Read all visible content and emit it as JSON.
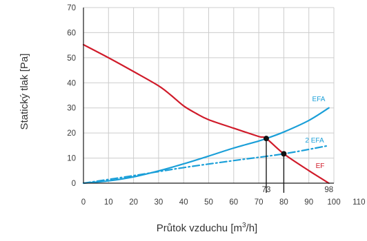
{
  "chart_data": {
    "type": "line",
    "xlabel": "Průtok vzduchu [m",
    "xlabel_sup": "3",
    "xlabel_tail": "/h]",
    "ylabel": "Statický tlak [Pa]",
    "xlim": [
      0,
      110
    ],
    "ylim": [
      0,
      70
    ],
    "xticks": [
      0,
      10,
      20,
      30,
      40,
      50,
      60,
      70,
      80,
      90,
      100,
      110
    ],
    "yticks": [
      0,
      10,
      20,
      30,
      40,
      50,
      60,
      70
    ],
    "grid": true,
    "series": [
      {
        "name": "EFA",
        "style": "solid",
        "color": "#1a9fd8",
        "x": [
          0,
          10,
          20,
          30,
          40,
          50,
          60,
          70,
          73,
          80,
          90,
          98
        ],
        "y": [
          0,
          0.9,
          2.5,
          4.9,
          7.7,
          10.8,
          14.0,
          16.8,
          17.8,
          20.4,
          25.0,
          30.0
        ]
      },
      {
        "name": "2 EFA",
        "style": "dash-dot",
        "color": "#1a9fd8",
        "x": [
          0,
          20,
          40,
          60,
          80,
          98
        ],
        "y": [
          0,
          3.0,
          6.2,
          9.0,
          11.7,
          15.0
        ]
      },
      {
        "name": "EF",
        "style": "solid",
        "color": "#d01b2a",
        "x": [
          0,
          10,
          20,
          30,
          35,
          40,
          45,
          50,
          60,
          70,
          73,
          80,
          90,
          98
        ],
        "y": [
          55.2,
          50.0,
          44.5,
          38.8,
          35.0,
          30.8,
          27.8,
          25.3,
          21.9,
          18.6,
          17.8,
          11.7,
          5.0,
          0
        ]
      }
    ],
    "points": [
      {
        "x": 73,
        "y": 17.8
      },
      {
        "x": 80,
        "y": 11.7
      }
    ],
    "annotations": [
      {
        "x": 73,
        "text": "73"
      },
      {
        "x": 98,
        "text": "98"
      }
    ],
    "colors": {
      "grid": "#cccccc",
      "axis": "#1a1a1a",
      "marker": "#111111"
    }
  }
}
